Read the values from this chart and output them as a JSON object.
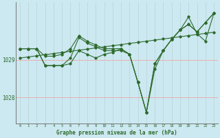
{
  "xlabel": "Graphe pression niveau de la mer (hPa)",
  "hours": [
    0,
    1,
    2,
    3,
    4,
    5,
    6,
    7,
    8,
    9,
    10,
    11,
    12,
    13,
    14,
    15,
    16,
    17,
    18,
    19,
    20,
    21,
    22,
    23
  ],
  "series1": [
    1029.3,
    1029.3,
    1029.3,
    1029.1,
    1029.1,
    1029.15,
    1029.3,
    1029.65,
    1029.5,
    1029.4,
    1029.3,
    1029.3,
    1029.3,
    1029.15,
    1028.4,
    1027.6,
    1028.9,
    1029.25,
    1029.55,
    1029.8,
    1029.95,
    1029.75,
    1030.0,
    1030.25
  ],
  "series2": [
    1029.3,
    1029.3,
    1029.3,
    1028.85,
    1028.85,
    1028.85,
    1028.9,
    1029.25,
    1029.15,
    1029.05,
    1029.15,
    1029.2,
    1029.3,
    1029.15,
    1028.4,
    1027.6,
    1028.9,
    1029.25,
    1029.55,
    1029.8,
    1029.95,
    1029.75,
    1030.0,
    1030.25
  ],
  "series3_slope": [
    1029.05,
    1029.08,
    1029.11,
    1029.14,
    1029.17,
    1029.2,
    1029.23,
    1029.26,
    1029.29,
    1029.32,
    1029.35,
    1029.38,
    1029.41,
    1029.44,
    1029.47,
    1029.5,
    1029.53,
    1029.56,
    1029.59,
    1029.62,
    1029.65,
    1029.68,
    1029.71,
    1029.74
  ],
  "series4": [
    1029.3,
    1029.3,
    1029.3,
    1028.85,
    1028.85,
    1028.85,
    1029.05,
    1029.6,
    1029.45,
    1029.35,
    1029.25,
    1029.25,
    1029.25,
    1029.15,
    1028.4,
    1027.6,
    1028.75,
    1029.25,
    1029.55,
    1029.8,
    1030.15,
    1029.7,
    1029.5,
    1030.25
  ],
  "bg_color": "#cce8f0",
  "line_color": "#2d6a2d",
  "hgrid_color": "#e8b0b0",
  "vgrid_color": "#b8d4d8",
  "ylim_min": 1027.3,
  "ylim_max": 1030.55,
  "yticks": [
    1028,
    1029
  ],
  "ytick_labels": [
    "1028",
    "1029"
  ]
}
